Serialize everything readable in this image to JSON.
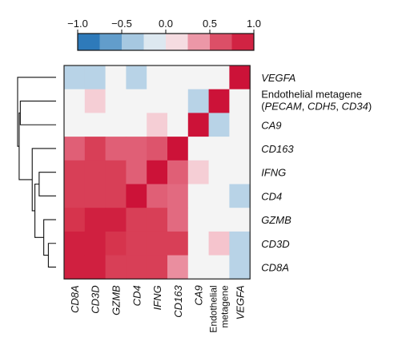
{
  "chart_data": {
    "type": "heatmap",
    "title": "",
    "colorbar": {
      "min": -1.0,
      "max": 1.0,
      "ticks": [
        "−1.0",
        "−0.5",
        "0.0",
        "0.5",
        "1.0"
      ],
      "tick_values": [
        -1.0,
        -0.5,
        0.0,
        0.5,
        1.0
      ],
      "colors": [
        "#1f6fb4",
        "#3d85c0",
        "#86b4d6",
        "#c5dbeb",
        "#f4f4f4",
        "#f5c4cd",
        "#e26a80",
        "#d6344d",
        "#cc1238"
      ]
    },
    "rows": [
      {
        "label": "VEGFA"
      },
      {
        "label": "Endothelial metagene",
        "sub_parts": [
          "(",
          "PECAM",
          ", ",
          "CDH5",
          ", ",
          "CD34",
          ")"
        ]
      },
      {
        "label": "CA9"
      },
      {
        "label": "CD163"
      },
      {
        "label": "IFNG"
      },
      {
        "label": "CD4"
      },
      {
        "label": "GZMB"
      },
      {
        "label": "CD3D"
      },
      {
        "label": "CD8A"
      }
    ],
    "columns": [
      {
        "label": "CD8A"
      },
      {
        "label": "CD3D"
      },
      {
        "label": "GZMB"
      },
      {
        "label": "CD4"
      },
      {
        "label": "IFNG"
      },
      {
        "label": "CD163"
      },
      {
        "label": "CA9"
      },
      {
        "label_lines": [
          "Endothelial",
          "metagene"
        ]
      },
      {
        "label": "VEGFA"
      }
    ],
    "values": [
      [
        -0.3,
        -0.3,
        0.0,
        -0.3,
        0.0,
        0.0,
        0.0,
        0.0,
        1.0
      ],
      [
        0.0,
        0.2,
        0.0,
        0.0,
        0.0,
        0.0,
        -0.3,
        1.0,
        0.0
      ],
      [
        0.0,
        0.0,
        0.0,
        0.0,
        0.2,
        0.0,
        1.0,
        -0.3,
        0.0
      ],
      [
        0.55,
        0.7,
        0.55,
        0.55,
        0.6,
        1.0,
        0.0,
        0.0,
        0.0
      ],
      [
        0.7,
        0.7,
        0.7,
        0.55,
        1.0,
        0.55,
        0.2,
        0.0,
        0.0
      ],
      [
        0.7,
        0.7,
        0.7,
        1.0,
        0.55,
        0.5,
        0.0,
        0.0,
        -0.3
      ],
      [
        0.75,
        0.9,
        0.9,
        0.7,
        0.7,
        0.5,
        0.0,
        0.0,
        0.0
      ],
      [
        0.9,
        0.9,
        0.75,
        0.7,
        0.7,
        0.7,
        0.0,
        0.25,
        -0.3
      ],
      [
        0.9,
        0.9,
        0.7,
        0.7,
        0.7,
        0.4,
        0.0,
        0.0,
        -0.3
      ]
    ],
    "dendrogram": {
      "side": "left",
      "merges": [
        [
          7,
          8,
          0.2
        ],
        [
          6,
          9,
          0.32
        ],
        [
          4,
          5,
          0.44
        ],
        [
          10,
          11,
          0.55
        ],
        [
          3,
          12,
          0.62
        ],
        [
          1,
          2,
          0.93
        ],
        [
          13,
          14,
          0.96
        ],
        [
          0,
          15,
          1.0
        ]
      ]
    }
  }
}
